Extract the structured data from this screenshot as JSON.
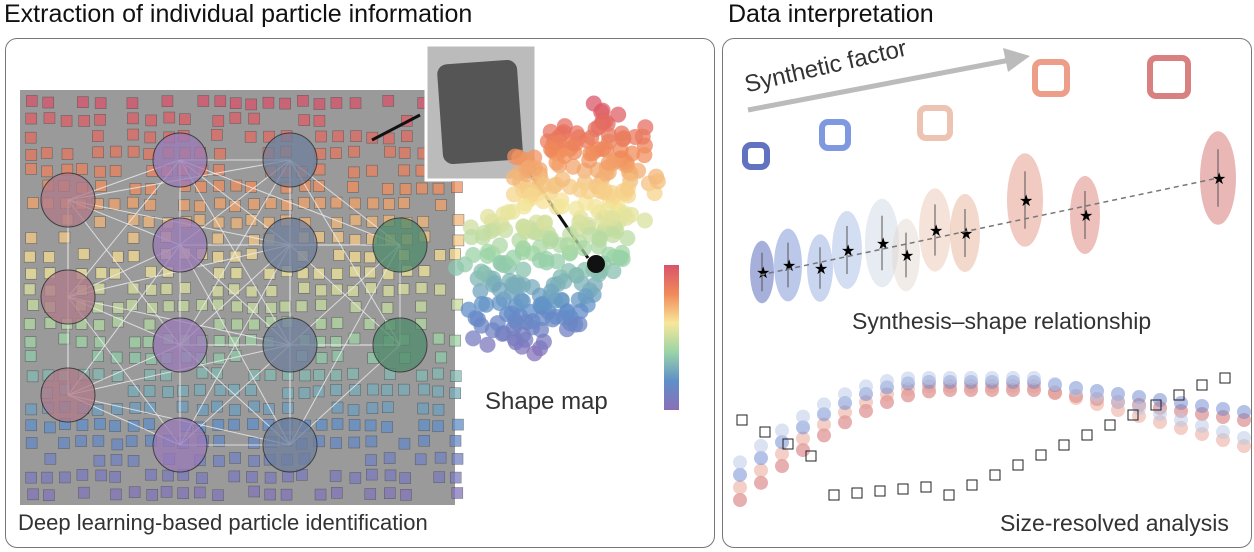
{
  "left_panel": {
    "title": "Extraction of individual particle information",
    "caption": "Deep learning-based particle identification",
    "shape_map_label": "Shape map"
  },
  "right_panel": {
    "title": "Data interpretation",
    "arrow_label": "Synthetic factor",
    "violin_label": "Synthesis–shape relationship",
    "size_label": "Size-resolved analysis"
  },
  "colors": {
    "panel_border": "#777777",
    "colormap": [
      "#d9536a",
      "#f08a5a",
      "#f7e79a",
      "#9ad4a6",
      "#5f8fc9",
      "#8a6fb8"
    ]
  }
}
